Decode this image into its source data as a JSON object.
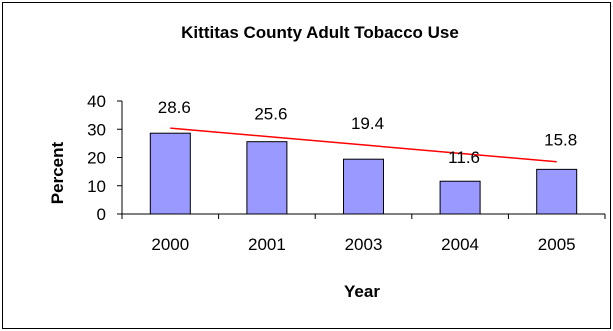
{
  "chart_data": {
    "type": "bar",
    "title": "Kittitas County Adult Tobacco Use",
    "xlabel": "Year",
    "ylabel": "Percent",
    "categories": [
      "2000",
      "2001",
      "2003",
      "2004",
      "2005"
    ],
    "values": [
      28.6,
      25.6,
      19.4,
      11.6,
      15.8
    ],
    "data_labels": [
      "28.6",
      "25.6",
      "19.4",
      "11.6",
      "15.8"
    ],
    "ylim": [
      0,
      40
    ],
    "yticks": [
      "0",
      "10",
      "20",
      "30",
      "40"
    ],
    "trendline": {
      "type": "linear",
      "from_value": 30.4,
      "to_value": 18.5,
      "color": "#ff0000"
    },
    "bar_color": "#9999ff",
    "grid": false,
    "legend": "none"
  }
}
